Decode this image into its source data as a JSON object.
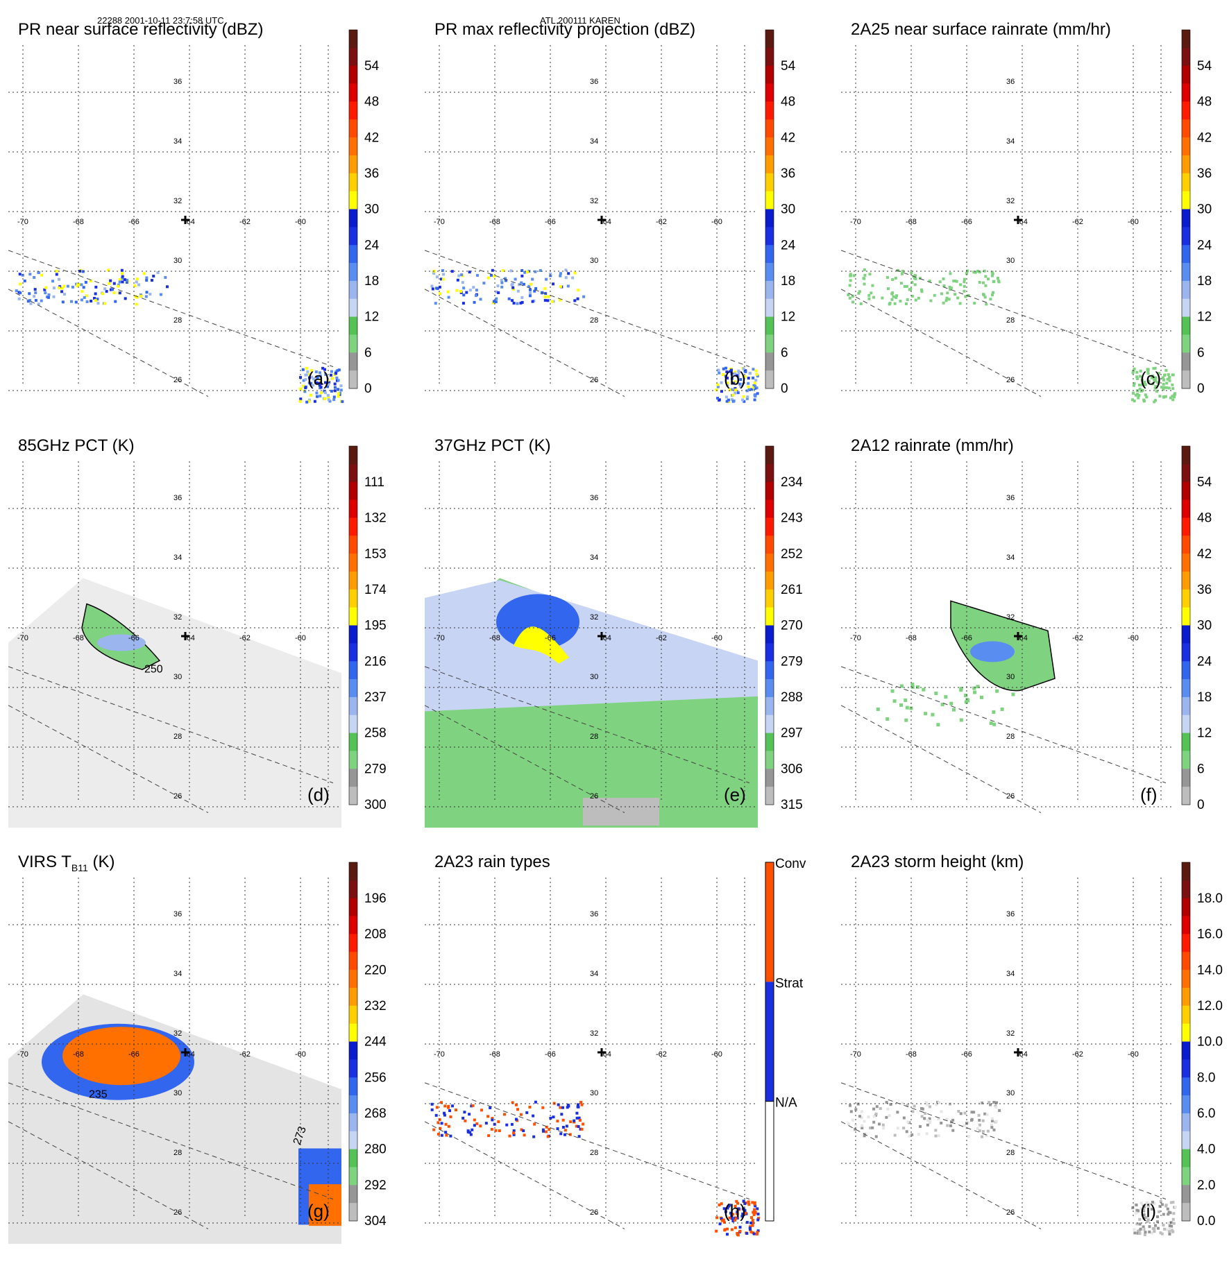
{
  "header": {
    "left": "22288 2001-10-11 23:7:58 UTC",
    "center": "ATL 200111 KAREN"
  },
  "map": {
    "lon_ticks": [
      "-70",
      "-68",
      "-66",
      "-64",
      "-62",
      "-60"
    ],
    "lat_ticks": [
      "36",
      "34",
      "32",
      "30",
      "28",
      "26"
    ]
  },
  "colors": {
    "palette": [
      "#ffffff",
      "#e6e6e6",
      "#bdbdbd",
      "#969696",
      "#7fd27f",
      "#55c255",
      "#c8d4f4",
      "#9bb6ef",
      "#5a8df0",
      "#3366ee",
      "#1a2fe0",
      "#0a1ccc",
      "#ffff00",
      "#ffd000",
      "#ff9c00",
      "#ff7000",
      "#ff4a00",
      "#ff1a00",
      "#dd0000",
      "#b00000",
      "#7a1010",
      "#5a1a10"
    ],
    "conv": "#ff5000",
    "strat": "#1a2fe0"
  },
  "chart_data": [
    {
      "panel": "a",
      "type": "heatmap",
      "title": "PR near surface reflectivity (dBZ)",
      "colorbar_ticks": [
        "54",
        "48",
        "42",
        "36",
        "30",
        "24",
        "18",
        "12",
        "6",
        "0"
      ],
      "colorbar_range": [
        0,
        60
      ]
    },
    {
      "panel": "b",
      "type": "heatmap",
      "title": "PR max reflectivity projection (dBZ)",
      "colorbar_ticks": [
        "54",
        "48",
        "42",
        "36",
        "30",
        "24",
        "18",
        "12",
        "6",
        "0"
      ],
      "colorbar_range": [
        0,
        60
      ]
    },
    {
      "panel": "c",
      "type": "heatmap",
      "title": "2A25 near surface rainrate (mm/hr)",
      "colorbar_ticks": [
        "54",
        "48",
        "42",
        "36",
        "30",
        "24",
        "18",
        "12",
        "6",
        "0"
      ],
      "colorbar_range": [
        0,
        60
      ]
    },
    {
      "panel": "d",
      "type": "heatmap",
      "title": "85GHz PCT (K)",
      "colorbar_ticks": [
        "111",
        "132",
        "153",
        "174",
        "195",
        "216",
        "237",
        "258",
        "279",
        "300"
      ],
      "colorbar_range": [
        90,
        300
      ],
      "contour_label": "250"
    },
    {
      "panel": "e",
      "type": "heatmap",
      "title": "37GHz PCT (K)",
      "colorbar_ticks": [
        "234",
        "243",
        "252",
        "261",
        "270",
        "279",
        "288",
        "297",
        "306",
        "315"
      ],
      "colorbar_range": [
        225,
        315
      ]
    },
    {
      "panel": "f",
      "type": "heatmap",
      "title": "2A12 rainrate (mm/hr)",
      "colorbar_ticks": [
        "54",
        "48",
        "42",
        "36",
        "30",
        "24",
        "18",
        "12",
        "6",
        "0"
      ],
      "colorbar_range": [
        0,
        60
      ]
    },
    {
      "panel": "g",
      "type": "heatmap",
      "title_main": "VIRS T",
      "title_sub": "B11",
      "title_unit": " (K)",
      "colorbar_ticks": [
        "196",
        "208",
        "220",
        "232",
        "244",
        "256",
        "268",
        "280",
        "292",
        "304"
      ],
      "colorbar_range": [
        184,
        304
      ],
      "contour_labels": [
        "235",
        "273"
      ]
    },
    {
      "panel": "h",
      "type": "heatmap",
      "title": "2A23 rain types",
      "categories": [
        "Conv",
        "Strat",
        "N/A"
      ]
    },
    {
      "panel": "i",
      "type": "heatmap",
      "title": "2A23 storm height (km)",
      "colorbar_ticks": [
        "18.0",
        "16.0",
        "14.0",
        "12.0",
        "10.0",
        "8.0",
        "6.0",
        "4.0",
        "2.0",
        "0.0"
      ],
      "colorbar_range": [
        0,
        20
      ]
    }
  ]
}
